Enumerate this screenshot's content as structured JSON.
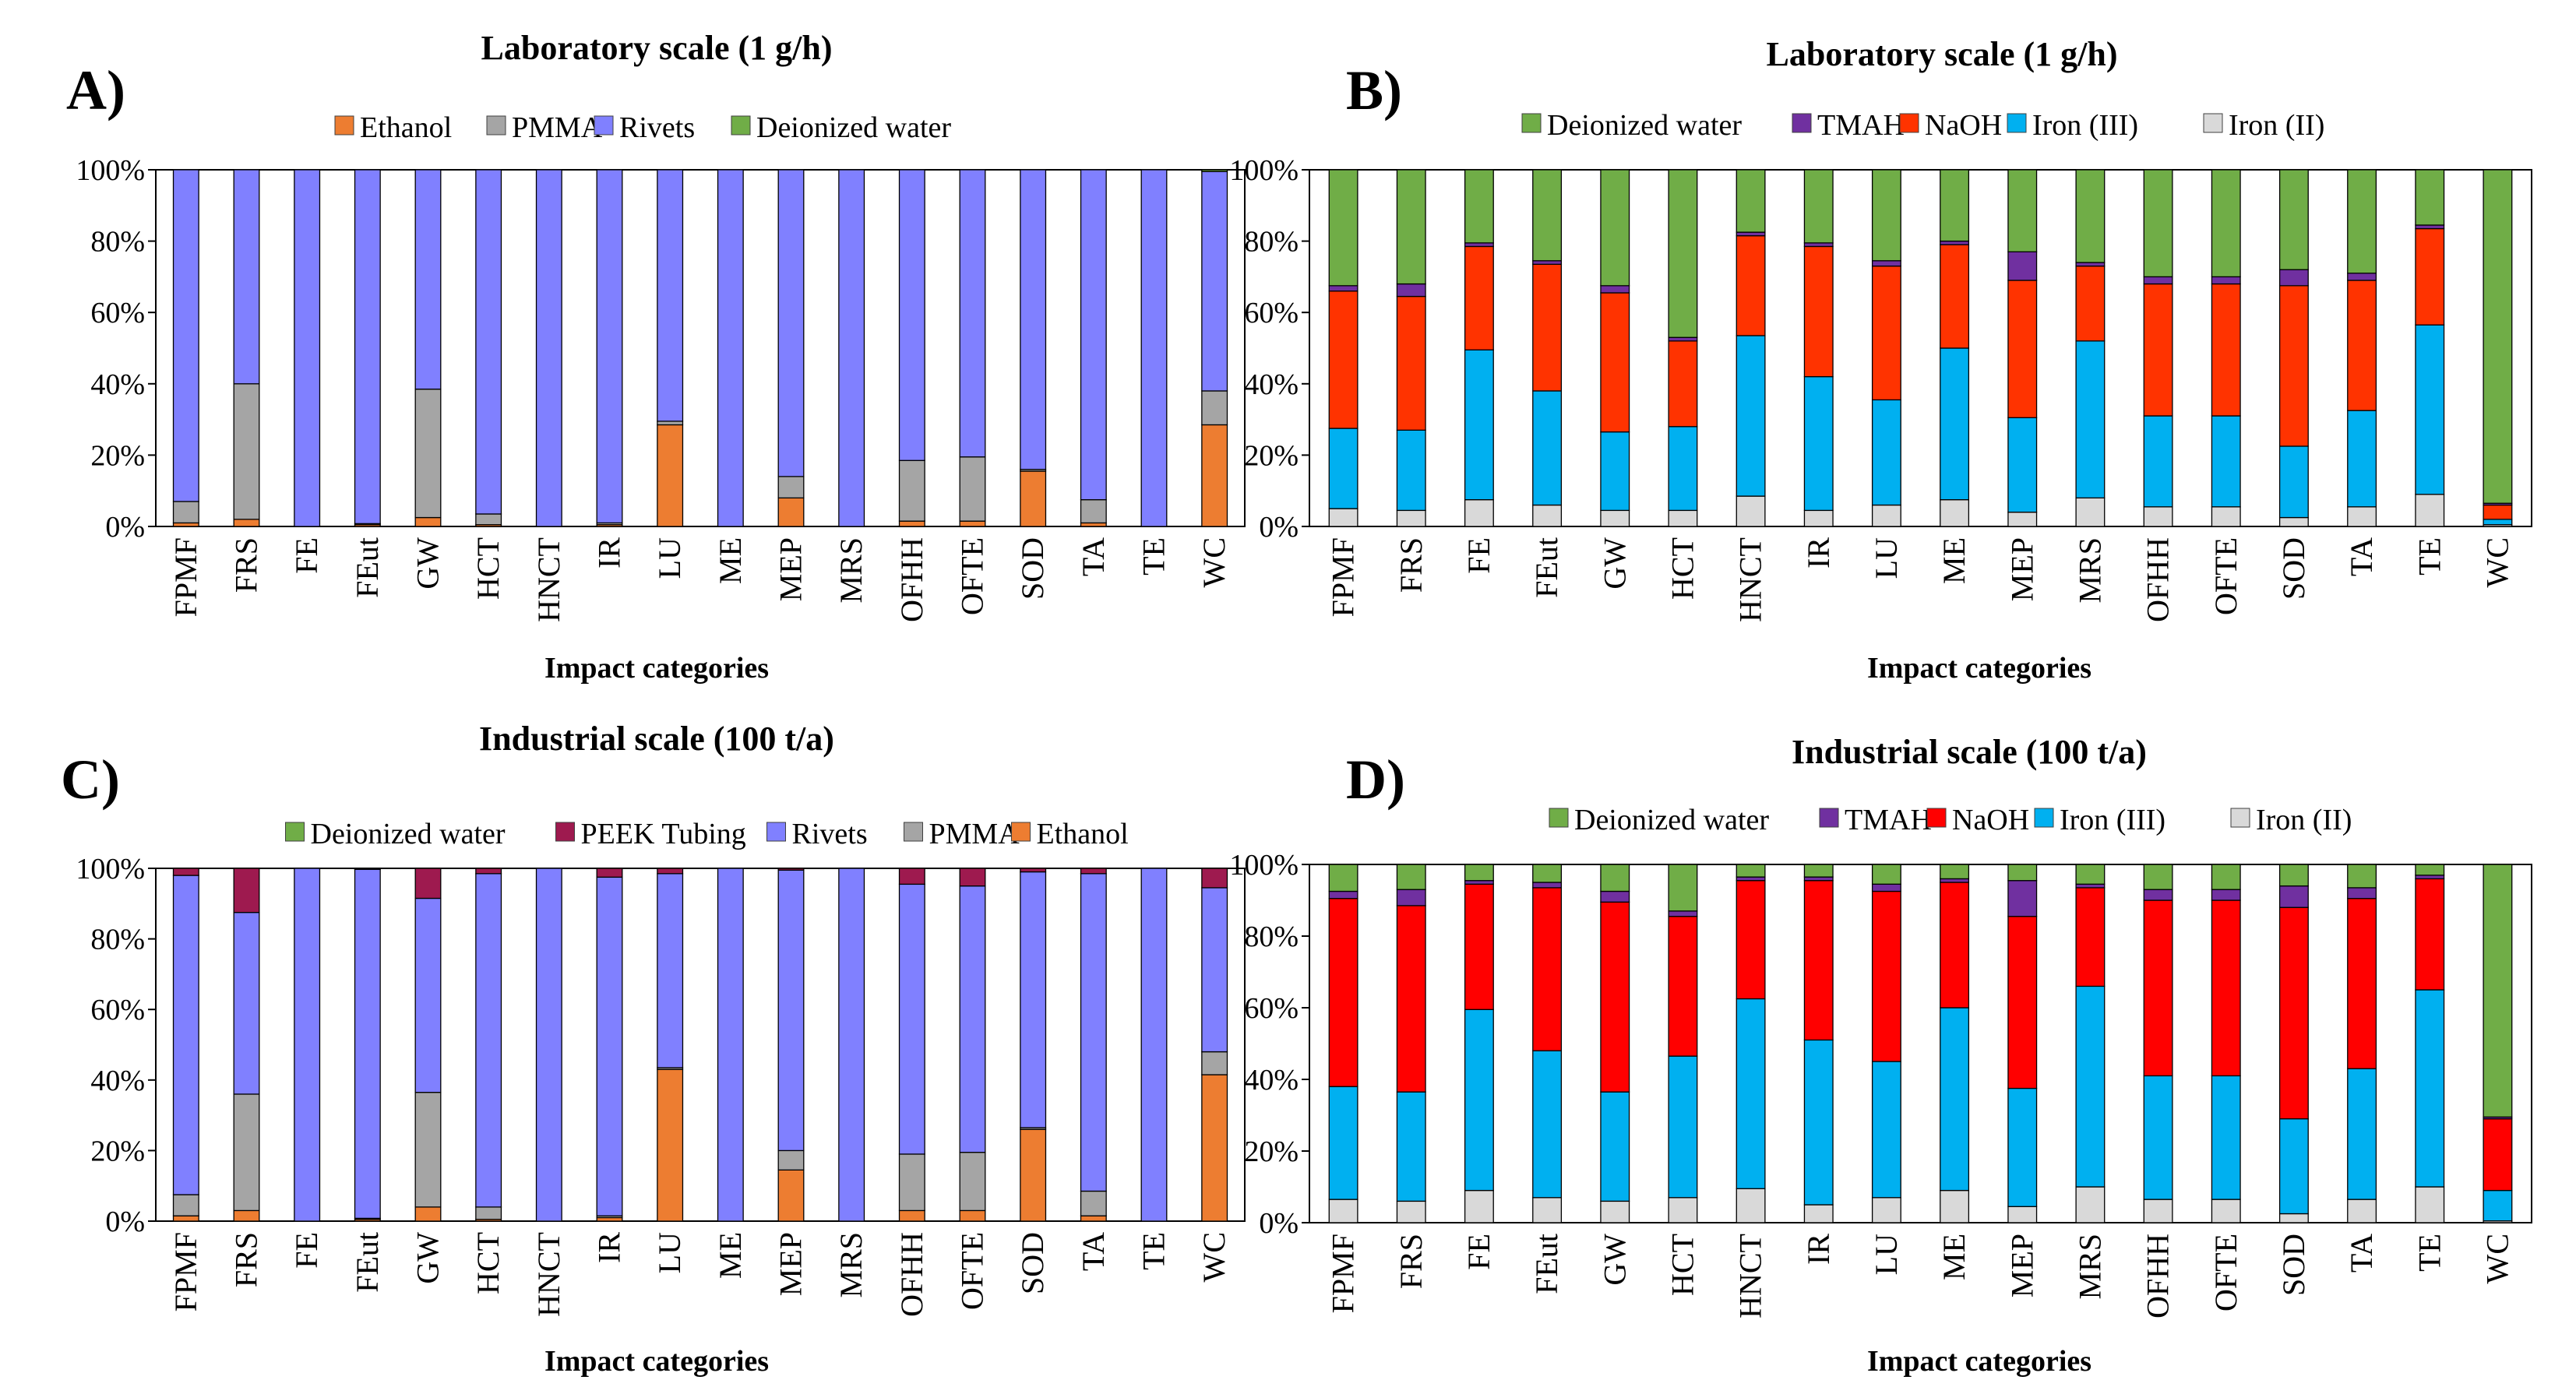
{
  "chart_data": [
    {
      "panel": "A)",
      "type": "bar",
      "stacked": true,
      "normalized": true,
      "title": "Laboratory scale (1 g/h)",
      "xlabel": "Impact categories",
      "ylabel": "",
      "yticks": [
        "0%",
        "20%",
        "40%",
        "60%",
        "80%",
        "100%"
      ],
      "ylim": [
        0,
        100
      ],
      "grid": false,
      "legend": "top",
      "categories": [
        "FPMF",
        "FRS",
        "FE",
        "FEut",
        "GW",
        "HCT",
        "HNCT",
        "IR",
        "LU",
        "ME",
        "MEP",
        "MRS",
        "OFHH",
        "OFTE",
        "SOD",
        "TA",
        "TE",
        "WC"
      ],
      "legend_order": [
        "Ethanol",
        "PMMA",
        "Rivets",
        "Deionized water"
      ],
      "series": [
        {
          "name": "Ethanol",
          "color": "#ED7D31",
          "values": [
            1,
            2,
            0,
            0.5,
            2.5,
            0.5,
            0,
            0.5,
            28.5,
            0,
            8,
            0,
            1.5,
            1.5,
            15.5,
            1,
            0,
            28.5
          ]
        },
        {
          "name": "PMMA",
          "color": "#A5A5A5",
          "values": [
            6,
            38,
            0,
            0.3,
            36,
            3,
            0,
            0.5,
            1,
            0,
            6,
            0,
            17,
            18,
            0.5,
            6.5,
            0,
            9.5
          ]
        },
        {
          "name": "Rivets",
          "color": "#8080FF",
          "values": [
            93,
            60,
            100,
            99.2,
            61.5,
            96.5,
            100,
            99,
            70.5,
            100,
            86,
            100,
            81.5,
            80.5,
            84,
            92.5,
            100,
            61.5
          ]
        },
        {
          "name": "Deionized water",
          "color": "#70AD47",
          "values": [
            0,
            0,
            0,
            0,
            0,
            0,
            0,
            0,
            0,
            0,
            0,
            0,
            0,
            0,
            0,
            0,
            0,
            0.5
          ]
        }
      ]
    },
    {
      "panel": "B)",
      "type": "bar",
      "stacked": true,
      "normalized": true,
      "title": "Laboratory scale (1 g/h)",
      "xlabel": "Impact categories",
      "ylabel": "",
      "yticks": [
        "0%",
        "20%",
        "40%",
        "60%",
        "80%",
        "100%"
      ],
      "ylim": [
        0,
        100
      ],
      "grid": false,
      "legend": "top",
      "categories": [
        "FPMF",
        "FRS",
        "FE",
        "FEut",
        "GW",
        "HCT",
        "HNCT",
        "IR",
        "LU",
        "ME",
        "MEP",
        "MRS",
        "OFHH",
        "OFTE",
        "SOD",
        "TA",
        "TE",
        "WC"
      ],
      "legend_order": [
        "Deionized water",
        "TMAH",
        "NaOH",
        "Iron (III)",
        "Iron (II)"
      ],
      "series": [
        {
          "name": "Iron (II)",
          "color": "#D9D9D9",
          "values": [
            5,
            4.5,
            7.5,
            6,
            4.5,
            4.5,
            8.5,
            4.5,
            6,
            7.5,
            4,
            8,
            5.5,
            5.5,
            2.5,
            5.5,
            9,
            0.5
          ]
        },
        {
          "name": "Iron (III)",
          "color": "#00B0F0",
          "values": [
            22.5,
            22.5,
            42,
            32,
            22,
            23.5,
            45,
            37.5,
            29.5,
            42.5,
            26.5,
            44,
            25.5,
            25.5,
            20,
            27,
            47.5,
            1.5
          ]
        },
        {
          "name": "NaOH",
          "color": "#FF3300",
          "values": [
            38.5,
            37.5,
            29,
            35.5,
            39,
            24,
            28,
            36.5,
            37.5,
            29,
            38.5,
            21,
            37,
            37,
            45,
            36.5,
            27,
            4
          ]
        },
        {
          "name": "TMAH",
          "color": "#7030A0",
          "values": [
            1.5,
            3.5,
            1,
            1,
            2,
            1,
            1,
            1,
            1.5,
            1,
            8,
            1,
            2,
            2,
            4.5,
            2,
            1,
            0.5
          ]
        },
        {
          "name": "Deionized water",
          "color": "#70AD47",
          "values": [
            32.5,
            32,
            20.5,
            25.5,
            32.5,
            47,
            17.5,
            20.5,
            25.5,
            20,
            23,
            26,
            30,
            30,
            28,
            29,
            15.5,
            93.5
          ]
        }
      ]
    },
    {
      "panel": "C)",
      "type": "bar",
      "stacked": true,
      "normalized": true,
      "title": "Industrial scale (100 t/a)",
      "xlabel": "Impact categories",
      "ylabel": "",
      "yticks": [
        "0%",
        "20%",
        "40%",
        "60%",
        "80%",
        "100%"
      ],
      "ylim": [
        0,
        100
      ],
      "grid": false,
      "legend": "top",
      "categories": [
        "FPMF",
        "FRS",
        "FE",
        "FEut",
        "GW",
        "HCT",
        "HNCT",
        "IR",
        "LU",
        "ME",
        "MEP",
        "MRS",
        "OFHH",
        "OFTE",
        "SOD",
        "TA",
        "TE",
        "WC"
      ],
      "legend_order": [
        "Deionized water",
        "PEEK Tubing",
        "Rivets",
        "PMMA",
        "Ethanol"
      ],
      "series": [
        {
          "name": "Ethanol",
          "color": "#ED7D31",
          "values": [
            1.5,
            3,
            0,
            0.5,
            4,
            0.5,
            0,
            1,
            43,
            0,
            14.5,
            0,
            3,
            3,
            26,
            1.5,
            0,
            41.5
          ]
        },
        {
          "name": "PMMA",
          "color": "#A5A5A5",
          "values": [
            6,
            33,
            0,
            0.3,
            32.5,
            3.5,
            0,
            0.5,
            0.5,
            0,
            5.5,
            0,
            16,
            16.5,
            0.5,
            7,
            0,
            6.5
          ]
        },
        {
          "name": "Rivets",
          "color": "#8080FF",
          "values": [
            90.5,
            51.5,
            100,
            98.9,
            55,
            94.5,
            100,
            96,
            55,
            100,
            79.5,
            100,
            76.5,
            75.5,
            72.5,
            90,
            100,
            46.5
          ]
        },
        {
          "name": "PEEK Tubing",
          "color": "#9E1A4F",
          "values": [
            2,
            12.5,
            0,
            0.3,
            8.5,
            1.5,
            0,
            2.5,
            1.5,
            0,
            0.5,
            0,
            4.5,
            5,
            1,
            1.5,
            0,
            5.5
          ]
        },
        {
          "name": "Deionized water",
          "color": "#70AD47",
          "values": [
            0,
            0,
            0,
            0,
            0,
            0,
            0,
            0,
            0,
            0,
            0,
            0,
            0,
            0,
            0,
            0,
            0,
            0
          ]
        }
      ]
    },
    {
      "panel": "D)",
      "type": "bar",
      "stacked": true,
      "normalized": true,
      "title": "Industrial scale (100 t/a)",
      "xlabel": "Impact categories",
      "ylabel": "",
      "yticks": [
        "0%",
        "20%",
        "40%",
        "60%",
        "80%",
        "100%"
      ],
      "ylim": [
        0,
        100
      ],
      "grid": false,
      "legend": "top",
      "categories": [
        "FPMF",
        "FRS",
        "FE",
        "FEut",
        "GW",
        "HCT",
        "HNCT",
        "IR",
        "LU",
        "ME",
        "MEP",
        "MRS",
        "OFHH",
        "OFTE",
        "SOD",
        "TA",
        "TE",
        "WC"
      ],
      "legend_order": [
        "Deionized water",
        "TMAH",
        "NaOH",
        "Iron (III)",
        "Iron (II)"
      ],
      "series": [
        {
          "name": "Iron (II)",
          "color": "#D9D9D9",
          "values": [
            6.5,
            6,
            9,
            7,
            6,
            7,
            9.5,
            5,
            7,
            9,
            4.5,
            10,
            6.5,
            6.5,
            2.5,
            6.5,
            10,
            0.5
          ]
        },
        {
          "name": "Iron (III)",
          "color": "#00B0F0",
          "values": [
            31.5,
            30.5,
            50.5,
            41,
            30.5,
            39.5,
            53,
            46,
            38,
            51,
            33,
            56,
            34.5,
            34.5,
            26.5,
            36.5,
            55,
            8.5
          ]
        },
        {
          "name": "NaOH",
          "color": "#FF0000",
          "values": [
            52.5,
            52,
            35,
            45.5,
            53,
            39,
            33,
            44.5,
            47.5,
            35,
            48,
            27.5,
            49,
            49,
            59,
            47.5,
            31,
            20
          ]
        },
        {
          "name": "TMAH",
          "color": "#7030A0",
          "values": [
            2,
            4.5,
            1,
            1.5,
            3,
            1.5,
            1,
            1,
            2,
            1,
            10,
            1,
            3,
            3,
            6,
            3,
            1,
            0.5
          ]
        },
        {
          "name": "Deionized water",
          "color": "#70AD47",
          "values": [
            7.5,
            7,
            4.5,
            5,
            7.5,
            13,
            3.5,
            3.5,
            5.5,
            4,
            4.5,
            5.5,
            7,
            7,
            6,
            6.5,
            3,
            70.5
          ]
        }
      ]
    }
  ]
}
